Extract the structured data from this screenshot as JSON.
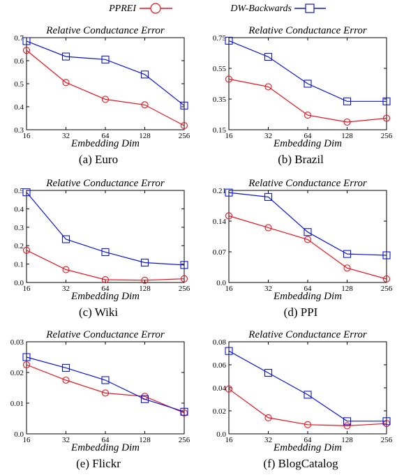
{
  "legend": {
    "ppr_label": "PPREI",
    "dw_label": "DW-Backwards",
    "ppr_color": "#e8111b",
    "dw_color": "#0a14d6"
  },
  "chart_data": [
    {
      "type": "line",
      "caption": "(a) Euro",
      "title": "Relative Conductance Error",
      "xlabel": "Embedding Dim",
      "categories": [
        "16",
        "32",
        "64",
        "128",
        "256"
      ],
      "ylim": [
        0.3,
        0.7
      ],
      "yticks": [
        "0.3",
        "0.4",
        "0.5",
        "0.6",
        "0.7"
      ],
      "series": [
        {
          "name": "PPREI",
          "values": [
            0.645,
            0.505,
            0.432,
            0.408,
            0.318
          ]
        },
        {
          "name": "DW-Backwards",
          "values": [
            0.685,
            0.618,
            0.605,
            0.54,
            0.405
          ]
        }
      ]
    },
    {
      "type": "line",
      "caption": "(b) Brazil",
      "title": "Relative Conductance Error",
      "xlabel": "Embedding Dim",
      "categories": [
        "16",
        "32",
        "64",
        "128",
        "256"
      ],
      "ylim": [
        0.15,
        0.75
      ],
      "yticks": [
        "0.15",
        "0.35",
        "0.55",
        "0.75"
      ],
      "series": [
        {
          "name": "PPREI",
          "values": [
            0.48,
            0.43,
            0.245,
            0.2,
            0.225
          ]
        },
        {
          "name": "DW-Backwards",
          "values": [
            0.73,
            0.625,
            0.45,
            0.335,
            0.335
          ]
        }
      ]
    },
    {
      "type": "line",
      "caption": "(c) Wiki",
      "title": "Relative Conductance Error",
      "xlabel": "Embedding Dim",
      "categories": [
        "16",
        "32",
        "64",
        "128",
        "256"
      ],
      "ylim": [
        0.0,
        0.5
      ],
      "yticks": [
        "0.0",
        "0.1",
        "0.2",
        "0.3",
        "0.4",
        "0.5"
      ],
      "series": [
        {
          "name": "PPREI",
          "values": [
            0.175,
            0.07,
            0.015,
            0.012,
            0.02
          ]
        },
        {
          "name": "DW-Backwards",
          "values": [
            0.49,
            0.235,
            0.165,
            0.108,
            0.095
          ]
        }
      ]
    },
    {
      "type": "line",
      "caption": "(d) PPI",
      "title": "Relative Conductance Error",
      "xlabel": "Embedding Dim",
      "categories": [
        "16",
        "32",
        "64",
        "128",
        "256"
      ],
      "ylim": [
        0.0,
        0.21
      ],
      "yticks": [
        "0.0",
        "0.07",
        "0.14",
        "0.21"
      ],
      "series": [
        {
          "name": "PPREI",
          "values": [
            0.152,
            0.125,
            0.098,
            0.033,
            0.008
          ]
        },
        {
          "name": "DW-Backwards",
          "values": [
            0.205,
            0.195,
            0.115,
            0.065,
            0.062
          ]
        }
      ]
    },
    {
      "type": "line",
      "caption": "(e) Flickr",
      "title": "Relative Conductance Error",
      "xlabel": "Embedding Dim",
      "categories": [
        "16",
        "32",
        "64",
        "128",
        "256"
      ],
      "ylim": [
        0.0,
        0.03
      ],
      "yticks": [
        "0.0",
        "0.01",
        "0.02",
        "0.03"
      ],
      "series": [
        {
          "name": "PPREI",
          "values": [
            0.0225,
            0.0175,
            0.0133,
            0.0122,
            0.0068
          ]
        },
        {
          "name": "DW-Backwards",
          "values": [
            0.025,
            0.0215,
            0.0175,
            0.0113,
            0.0072
          ]
        }
      ]
    },
    {
      "type": "line",
      "caption": "(f) BlogCatalog",
      "title": "Relative Conductance Error",
      "xlabel": "Embedding Dim",
      "categories": [
        "16",
        "32",
        "64",
        "128",
        "256"
      ],
      "ylim": [
        0.0,
        0.08
      ],
      "yticks": [
        "0.0",
        "0.02",
        "0.04",
        "0.06",
        "0.08"
      ],
      "series": [
        {
          "name": "PPREI",
          "values": [
            0.039,
            0.014,
            0.008,
            0.007,
            0.009
          ]
        },
        {
          "name": "DW-Backwards",
          "values": [
            0.072,
            0.053,
            0.034,
            0.011,
            0.011
          ]
        }
      ]
    }
  ]
}
